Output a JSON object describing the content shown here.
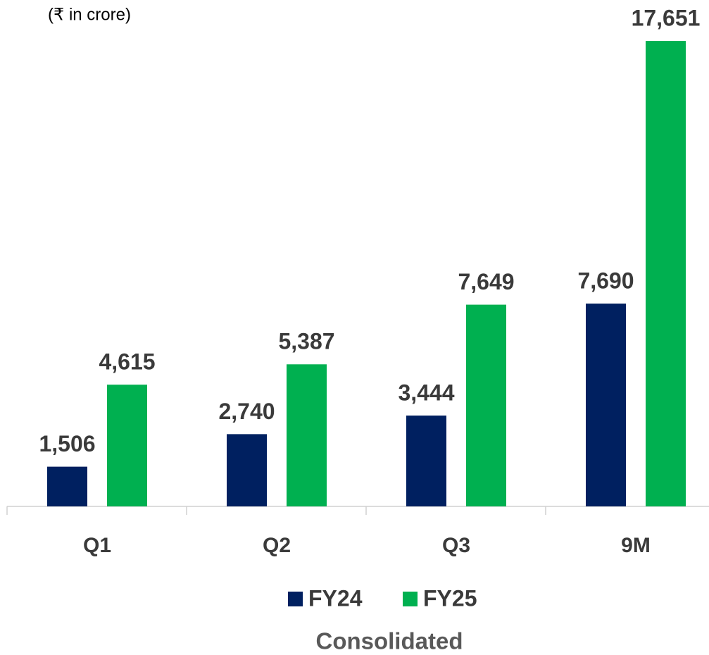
{
  "chart_data": {
    "type": "bar",
    "title": "Consolidated",
    "subtitle": "(₹ in crore)",
    "categories": [
      "Q1",
      "Q2",
      "Q3",
      "9M"
    ],
    "series": [
      {
        "name": "FY24",
        "color": "#002060",
        "values": [
          1506,
          2740,
          3444,
          7690
        ],
        "value_labels": [
          "1,506",
          "2,740",
          "3,444",
          "7,690"
        ]
      },
      {
        "name": "FY25",
        "color": "#00b050",
        "values": [
          4615,
          5387,
          7649,
          17651
        ],
        "value_labels": [
          "4,615",
          "5,387",
          "7,649",
          "17,651"
        ]
      }
    ],
    "ylim": [
      0,
      18000
    ]
  }
}
